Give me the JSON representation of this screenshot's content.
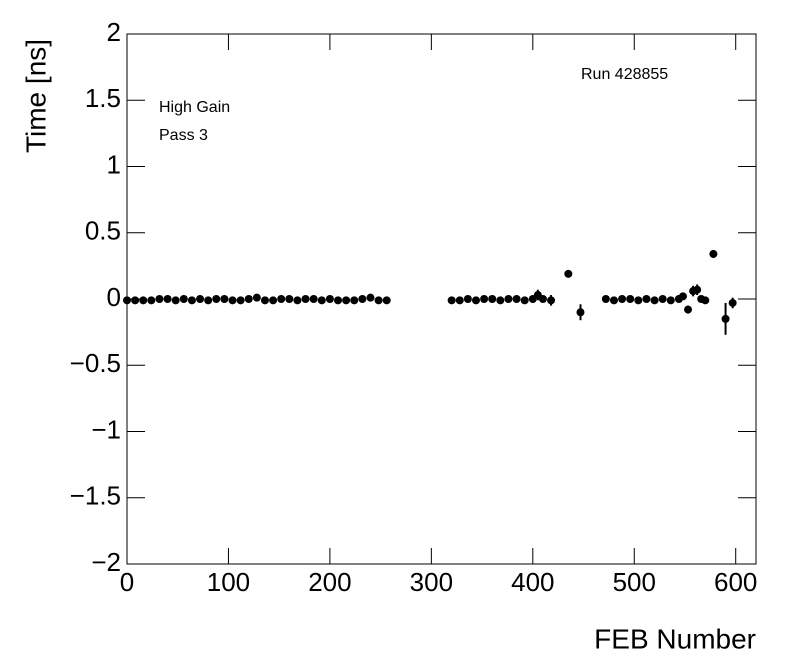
{
  "chart_data": {
    "type": "scatter",
    "x_label": "FEB Number",
    "y_label": "Time [ns]",
    "annotations": [
      "High Gain",
      "Pass 3",
      "Run 428855"
    ],
    "xlim": [
      0,
      620
    ],
    "ylim": [
      -2,
      2
    ],
    "xticks": [
      0,
      100,
      200,
      300,
      400,
      500,
      600
    ],
    "yticks": [
      {
        "value": -2,
        "label": "−2"
      },
      {
        "value": -1.5,
        "label": "−1.5"
      },
      {
        "value": -1,
        "label": "−1"
      },
      {
        "value": -0.5,
        "label": "−0.5"
      },
      0,
      0.5,
      1,
      1.5,
      2
    ],
    "color": "#000000",
    "x": [
      0,
      8,
      16,
      24,
      32,
      40,
      48,
      56,
      64,
      72,
      80,
      88,
      96,
      104,
      112,
      120,
      128,
      136,
      144,
      152,
      160,
      168,
      176,
      184,
      192,
      200,
      208,
      216,
      224,
      232,
      240,
      248,
      256,
      320,
      328,
      336,
      344,
      352,
      360,
      368,
      376,
      384,
      392,
      400,
      405,
      410,
      418,
      435,
      447,
      472,
      480,
      488,
      496,
      504,
      512,
      520,
      528,
      536,
      544,
      548,
      553,
      558,
      562,
      566,
      570,
      578,
      590,
      597
    ],
    "values": [
      -0.01,
      -0.01,
      -0.01,
      -0.01,
      0.0,
      0.0,
      -0.01,
      0.0,
      -0.01,
      0.0,
      -0.01,
      0.0,
      0.0,
      -0.01,
      -0.01,
      0.0,
      0.01,
      -0.01,
      -0.01,
      0.0,
      0.0,
      -0.01,
      0.0,
      0.0,
      -0.01,
      0.0,
      -0.01,
      -0.01,
      -0.01,
      0.0,
      0.01,
      -0.01,
      -0.01,
      -0.01,
      -0.01,
      0.0,
      -0.01,
      0.0,
      0.0,
      -0.01,
      0.0,
      0.0,
      -0.01,
      0.0,
      0.03,
      0.0,
      -0.01,
      0.19,
      -0.1,
      0.0,
      -0.01,
      0.0,
      0.0,
      -0.01,
      0.0,
      -0.01,
      0.0,
      -0.01,
      0.0,
      0.02,
      -0.08,
      0.06,
      0.07,
      0.0,
      -0.01,
      0.34,
      -0.15,
      -0.03
    ],
    "errors": [
      0.01,
      0.01,
      0.01,
      0.01,
      0.01,
      0.01,
      0.01,
      0.01,
      0.01,
      0.01,
      0.01,
      0.01,
      0.01,
      0.01,
      0.01,
      0.01,
      0.01,
      0.01,
      0.01,
      0.01,
      0.01,
      0.01,
      0.01,
      0.01,
      0.01,
      0.01,
      0.01,
      0.01,
      0.01,
      0.01,
      0.01,
      0.01,
      0.01,
      0.01,
      0.01,
      0.01,
      0.01,
      0.01,
      0.01,
      0.01,
      0.01,
      0.01,
      0.01,
      0.01,
      0.04,
      0.02,
      0.04,
      0.02,
      0.06,
      0.01,
      0.01,
      0.01,
      0.01,
      0.01,
      0.01,
      0.01,
      0.01,
      0.01,
      0.01,
      0.02,
      0.03,
      0.04,
      0.04,
      0.02,
      0.02,
      0.03,
      0.12,
      0.04
    ]
  }
}
